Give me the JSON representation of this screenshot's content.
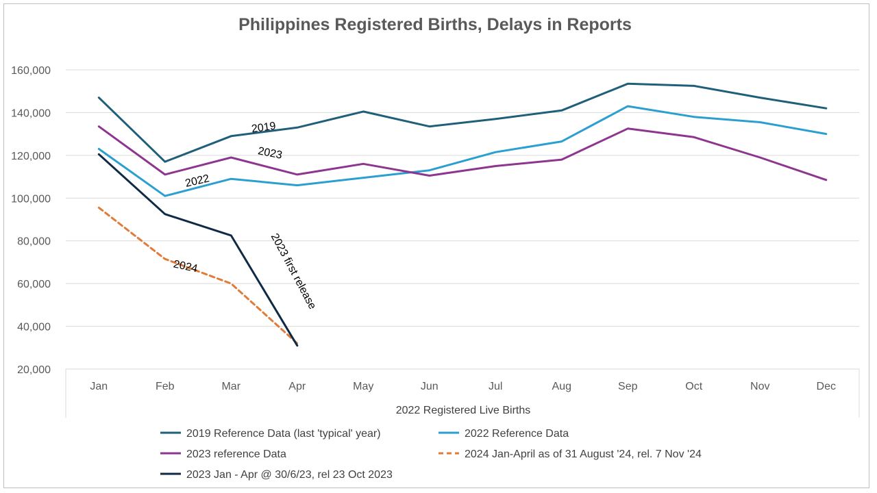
{
  "chart_data": {
    "type": "line",
    "title": "Philippines Registered Births, Delays in Reports",
    "xlabel": "2022 Registered Live Births",
    "ylabel": "",
    "ylim": [
      20000,
      160000
    ],
    "yticks": [
      20000,
      40000,
      60000,
      80000,
      100000,
      120000,
      140000,
      160000
    ],
    "ytick_labels": [
      "20,000",
      "40,000",
      "60,000",
      "80,000",
      "100,000",
      "120,000",
      "140,000",
      "160,000"
    ],
    "grid": true,
    "legend_position": "bottom",
    "categories": [
      "Jan",
      "Feb",
      "Mar",
      "Apr",
      "May",
      "Jun",
      "Jul",
      "Aug",
      "Sep",
      "Oct",
      "Nov",
      "Dec"
    ],
    "series": [
      {
        "name": "2019  Reference Data (last 'typical' year)",
        "color": "#1f5f7a",
        "dash": "solid",
        "values": [
          147000,
          117000,
          129000,
          133000,
          140500,
          133500,
          137000,
          141000,
          153500,
          152500,
          147000,
          142000
        ]
      },
      {
        "name": "2022 Reference Data",
        "color": "#2a9fd0",
        "dash": "solid",
        "values": [
          123000,
          101000,
          109000,
          106000,
          109500,
          113000,
          121500,
          126500,
          143000,
          138000,
          135500,
          130000
        ]
      },
      {
        "name": "2023 reference Data",
        "color": "#8e3590",
        "dash": "solid",
        "values": [
          133500,
          111000,
          119000,
          111000,
          116000,
          110500,
          115000,
          118000,
          132500,
          128500,
          119000,
          108500
        ]
      },
      {
        "name": "2024 Jan-April as of 31 August '24, rel. 7 Nov '24",
        "color": "#e07b39",
        "dash": "dashed",
        "values": [
          95500,
          71500,
          60000,
          32000,
          null,
          null,
          null,
          null,
          null,
          null,
          null,
          null
        ]
      },
      {
        "name": "2023 Jan - Apr @ 30/6/23, rel 23 Oct 2023",
        "color": "#0e2a45",
        "dash": "solid",
        "values": [
          120500,
          92500,
          82500,
          31000,
          null,
          null,
          null,
          null,
          null,
          null,
          null,
          null
        ]
      }
    ],
    "annotations": [
      {
        "text": "2019",
        "x": 2.5,
        "y": 131500,
        "angle": -8
      },
      {
        "text": "2023",
        "x": 2.58,
        "y": 119500,
        "angle": 11
      },
      {
        "text": "2022",
        "x": 1.5,
        "y": 106500,
        "angle": -13
      },
      {
        "text": "2024",
        "x": 1.3,
        "y": 66500,
        "angle": 12
      },
      {
        "text": "2023 first release",
        "x": 2.9,
        "y": 65000,
        "angle": 62
      }
    ]
  }
}
